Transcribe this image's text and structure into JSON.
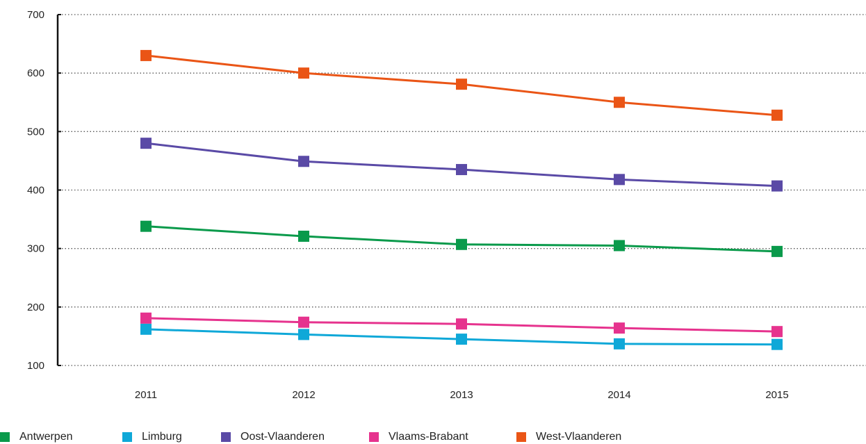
{
  "chart_data": {
    "type": "line",
    "title": "",
    "xlabel": "",
    "ylabel": "",
    "categories": [
      "2011",
      "2012",
      "2013",
      "2014",
      "2015"
    ],
    "ylim": [
      100,
      700
    ],
    "yticks": [
      100,
      200,
      300,
      400,
      500,
      600,
      700
    ],
    "grid": "horizontal dotted",
    "legend_position": "bottom",
    "series": [
      {
        "name": "Antwerpen",
        "color": "#0a9a4b",
        "values": [
          338,
          321,
          307,
          305,
          295
        ]
      },
      {
        "name": "Limburg",
        "color": "#0fa8d8",
        "values": [
          162,
          153,
          145,
          137,
          136
        ]
      },
      {
        "name": "Oost-Vlaanderen",
        "color": "#5a4aa6",
        "values": [
          480,
          449,
          435,
          418,
          407
        ]
      },
      {
        "name": "Vlaams-Brabant",
        "color": "#e6338e",
        "values": [
          181,
          174,
          171,
          164,
          158
        ]
      },
      {
        "name": "West-Vlaanderen",
        "color": "#ea5516",
        "values": [
          630,
          600,
          581,
          550,
          528
        ]
      }
    ]
  }
}
